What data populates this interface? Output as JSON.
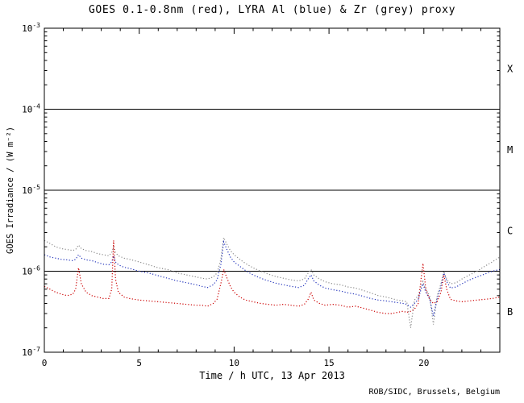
{
  "chart_data": {
    "type": "line",
    "title": "GOES 0.1-0.8nm (red), LYRA Al (blue) & Zr (grey) proxy",
    "xlabel": "Time / h UTC, 13 Apr 2013",
    "ylabel": "GOES Irradiance / (W m⁻²)",
    "credit": "ROB/SIDC, Brussels, Belgium",
    "yscale": "log",
    "xlim": [
      0,
      24
    ],
    "ylim": [
      1e-07,
      0.001
    ],
    "xticks": [
      0,
      5,
      10,
      15,
      20
    ],
    "xminor_step": 1,
    "ytick_exponents": [
      -3,
      -4,
      -5,
      -6,
      -7
    ],
    "reference_lines": [
      0.0001,
      1e-05,
      1e-06
    ],
    "flare_classes": [
      {
        "label": "X",
        "value": 0.000316
      },
      {
        "label": "M",
        "value": 3.16e-05
      },
      {
        "label": "C",
        "value": 3.16e-06
      },
      {
        "label": "B",
        "value": 3.16e-07
      }
    ],
    "axis_color": "#000000",
    "x": [
      0,
      0.3,
      0.6,
      0.9,
      1.2,
      1.5,
      1.65,
      1.8,
      1.95,
      2.2,
      2.5,
      2.8,
      3.1,
      3.4,
      3.55,
      3.65,
      3.75,
      3.9,
      4.2,
      4.5,
      5,
      5.5,
      6,
      6.5,
      7,
      7.5,
      8,
      8.3,
      8.6,
      8.9,
      9.1,
      9.3,
      9.45,
      9.6,
      9.8,
      10,
      10.3,
      10.6,
      11,
      11.4,
      11.8,
      12.2,
      12.6,
      13,
      13.4,
      13.7,
      13.9,
      14.05,
      14.2,
      14.5,
      14.8,
      15.2,
      15.6,
      16,
      16.4,
      16.8,
      17.2,
      17.6,
      18,
      18.3,
      18.6,
      18.9,
      19.1,
      19.3,
      19.5,
      19.7,
      19.85,
      19.95,
      20.1,
      20.3,
      20.5,
      20.7,
      20.9,
      21.05,
      21.2,
      21.4,
      21.7,
      22,
      22.4,
      22.8,
      23.2,
      23.6,
      24
    ],
    "series": [
      {
        "id": "lyra-zr",
        "name": "LYRA Zr proxy",
        "color": "#8a8a8a",
        "values": [
          2.4e-06,
          2.2e-06,
          2e-06,
          1.9e-06,
          1.85e-06,
          1.8e-06,
          1.85e-06,
          2.1e-06,
          1.9e-06,
          1.8e-06,
          1.75e-06,
          1.65e-06,
          1.6e-06,
          1.55e-06,
          1.7e-06,
          2e-06,
          1.7e-06,
          1.55e-06,
          1.45e-06,
          1.4e-06,
          1.3e-06,
          1.2e-06,
          1.1e-06,
          1.05e-06,
          9.5e-07,
          9e-07,
          8.5e-07,
          8.2e-07,
          8e-07,
          8.5e-07,
          9.5e-07,
          1.4e-06,
          2.6e-06,
          2.2e-06,
          1.8e-06,
          1.6e-06,
          1.4e-06,
          1.25e-06,
          1.1e-06,
          1e-06,
          9.2e-07,
          8.6e-07,
          8.2e-07,
          7.8e-07,
          7.6e-07,
          8e-07,
          9.5e-07,
          1.05e-06,
          9e-07,
          8e-07,
          7.4e-07,
          7e-07,
          6.8e-07,
          6.4e-07,
          6.2e-07,
          5.8e-07,
          5.4e-07,
          5e-07,
          4.8e-07,
          4.6e-07,
          4.4e-07,
          4.3e-07,
          4.2e-07,
          2e-07,
          4.4e-07,
          5e-07,
          6.5e-07,
          7.5e-07,
          6e-07,
          5e-07,
          2.2e-07,
          5e-07,
          7e-07,
          1e-06,
          8e-07,
          7e-07,
          7.2e-07,
          8e-07,
          9e-07,
          1e-06,
          1.15e-06,
          1.3e-06,
          1.5e-06
        ]
      },
      {
        "id": "lyra-al",
        "name": "LYRA Al",
        "color": "#2233bb",
        "values": [
          1.6e-06,
          1.5e-06,
          1.45e-06,
          1.4e-06,
          1.38e-06,
          1.35e-06,
          1.4e-06,
          1.6e-06,
          1.45e-06,
          1.38e-06,
          1.35e-06,
          1.28e-06,
          1.22e-06,
          1.2e-06,
          1.3e-06,
          1.55e-06,
          1.3e-06,
          1.2e-06,
          1.12e-06,
          1.08e-06,
          1e-06,
          9.5e-07,
          8.8e-07,
          8.2e-07,
          7.6e-07,
          7.2e-07,
          6.8e-07,
          6.5e-07,
          6.3e-07,
          6.8e-07,
          7.8e-07,
          1.2e-06,
          2.3e-06,
          1.9e-06,
          1.5e-06,
          1.3e-06,
          1.15e-06,
          1.02e-06,
          9e-07,
          8.2e-07,
          7.6e-07,
          7.1e-07,
          6.8e-07,
          6.5e-07,
          6.3e-07,
          6.7e-07,
          8e-07,
          9e-07,
          7.6e-07,
          6.7e-07,
          6.2e-07,
          5.9e-07,
          5.7e-07,
          5.4e-07,
          5.2e-07,
          4.9e-07,
          4.6e-07,
          4.4e-07,
          4.3e-07,
          4.2e-07,
          4.1e-07,
          4e-07,
          3.9e-07,
          3.6e-07,
          4e-07,
          4.5e-07,
          6e-07,
          7e-07,
          5.5e-07,
          4.6e-07,
          2.8e-07,
          4.6e-07,
          6.5e-07,
          9.5e-07,
          7.5e-07,
          6.2e-07,
          6.4e-07,
          7e-07,
          7.8e-07,
          8.5e-07,
          9.2e-07,
          1e-06,
          1.05e-06
        ]
      },
      {
        "id": "goes",
        "name": "GOES 0.1-0.8nm",
        "color": "#cc0000",
        "values": [
          6.5e-07,
          6e-07,
          5.5e-07,
          5.2e-07,
          5e-07,
          5.2e-07,
          6e-07,
          1.1e-06,
          7e-07,
          5.5e-07,
          5e-07,
          4.8e-07,
          4.6e-07,
          4.6e-07,
          6e-07,
          2.4e-06,
          8e-07,
          5.5e-07,
          4.8e-07,
          4.6e-07,
          4.4e-07,
          4.3e-07,
          4.2e-07,
          4.1e-07,
          4e-07,
          3.9e-07,
          3.8e-07,
          3.8e-07,
          3.7e-07,
          4e-07,
          4.5e-07,
          7e-07,
          1.05e-06,
          8.5e-07,
          6.5e-07,
          5.5e-07,
          4.8e-07,
          4.4e-07,
          4.2e-07,
          4e-07,
          3.9e-07,
          3.8e-07,
          3.9e-07,
          3.8e-07,
          3.7e-07,
          3.9e-07,
          4.5e-07,
          5.5e-07,
          4.4e-07,
          4e-07,
          3.8e-07,
          3.9e-07,
          3.8e-07,
          3.6e-07,
          3.7e-07,
          3.5e-07,
          3.3e-07,
          3.1e-07,
          3e-07,
          3e-07,
          3.1e-07,
          3.2e-07,
          3.1e-07,
          3.2e-07,
          3.4e-07,
          4e-07,
          8e-07,
          1.25e-06,
          6e-07,
          4.5e-07,
          4e-07,
          4.2e-07,
          5.5e-07,
          9e-07,
          6e-07,
          4.5e-07,
          4.3e-07,
          4.2e-07,
          4.3e-07,
          4.4e-07,
          4.5e-07,
          4.6e-07,
          4.8e-07
        ]
      }
    ]
  }
}
